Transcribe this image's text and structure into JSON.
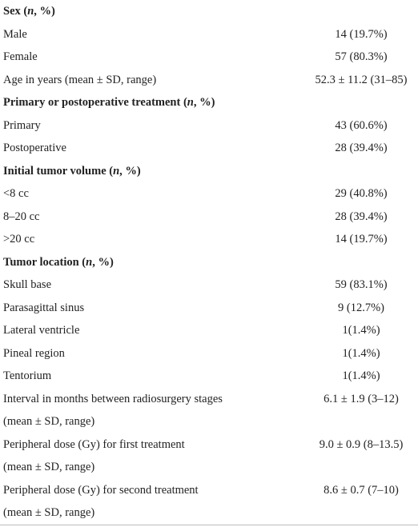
{
  "table": {
    "rows": [
      {
        "header": [
          "Sex (",
          "n",
          ", %)"
        ]
      },
      {
        "label": [
          "Male"
        ],
        "value": "14 (19.7%)"
      },
      {
        "label": [
          "Female"
        ],
        "value": "57 (80.3%)"
      },
      {
        "label": [
          "Age in years (mean ± SD, range)"
        ],
        "value": "52.3 ± 11.2 (31–85)"
      },
      {
        "header": [
          "Primary or postoperative treatment (",
          "n",
          ", %)"
        ]
      },
      {
        "label": [
          "Primary"
        ],
        "value": "43 (60.6%)"
      },
      {
        "label": [
          "Postoperative"
        ],
        "value": "28 (39.4%)"
      },
      {
        "header": [
          "Initial tumor volume (",
          "n",
          ", %)"
        ]
      },
      {
        "label": [
          "<8 cc"
        ],
        "value": "29 (40.8%)"
      },
      {
        "label": [
          "8–20 cc"
        ],
        "value": "28 (39.4%)"
      },
      {
        "label": [
          ">20 cc"
        ],
        "value": "14 (19.7%)"
      },
      {
        "header": [
          "Tumor location (",
          "n",
          ", %)"
        ]
      },
      {
        "label": [
          "Skull base"
        ],
        "value": "59 (83.1%)"
      },
      {
        "label": [
          "Parasagittal sinus"
        ],
        "value": "9 (12.7%)"
      },
      {
        "label": [
          "Lateral ventricle"
        ],
        "value": "1(1.4%)"
      },
      {
        "label": [
          "Pineal region"
        ],
        "value": "1(1.4%)"
      },
      {
        "label": [
          "Tentorium"
        ],
        "value": "1(1.4%)"
      },
      {
        "label": [
          "Interval in months between radiosurgery stages",
          "(mean ± SD, range)"
        ],
        "value": "6.1 ± 1.9 (3–12)"
      },
      {
        "label": [
          "Peripheral dose (Gy) for first treatment",
          "(mean ± SD, range)"
        ],
        "value": "9.0 ± 0.9 (8–13.5)"
      },
      {
        "label": [
          "Peripheral dose (Gy) for second treatment",
          "(mean ± SD, range)"
        ],
        "value": "8.6 ± 0.7 (7–10)"
      }
    ]
  }
}
